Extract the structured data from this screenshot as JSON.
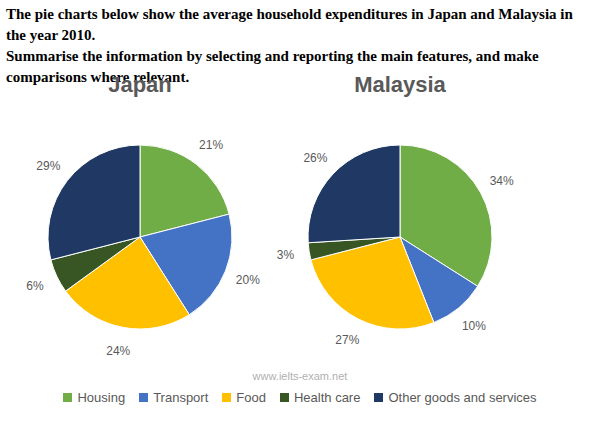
{
  "heading": [
    "The pie charts below show the average household expenditures in Japan and Malaysia in the year 2010.",
    "Summarise the information by selecting and reporting the main features, and make comparisons where relevant."
  ],
  "watermark": "www.ielts-exam.net",
  "chart_data": [
    {
      "type": "pie",
      "title": "Japan",
      "categories": [
        "Housing",
        "Transport",
        "Food",
        "Health care",
        "Other goods and services"
      ],
      "values": [
        21,
        20,
        24,
        6,
        29
      ],
      "value_labels": [
        "21%",
        "20%",
        "24%",
        "6%",
        "29%"
      ],
      "colors": [
        "#70ad47",
        "#4472c4",
        "#ffc000",
        "#375623",
        "#203864"
      ],
      "data_labels": true,
      "legend": "bottom"
    },
    {
      "type": "pie",
      "title": "Malaysia",
      "categories": [
        "Housing",
        "Transport",
        "Food",
        "Health care",
        "Other goods and services"
      ],
      "values": [
        34,
        10,
        27,
        3,
        26
      ],
      "value_labels": [
        "34%",
        "10%",
        "27%",
        "3%",
        "26%"
      ],
      "colors": [
        "#70ad47",
        "#4472c4",
        "#ffc000",
        "#375623",
        "#203864"
      ],
      "data_labels": true,
      "legend": "bottom"
    }
  ]
}
